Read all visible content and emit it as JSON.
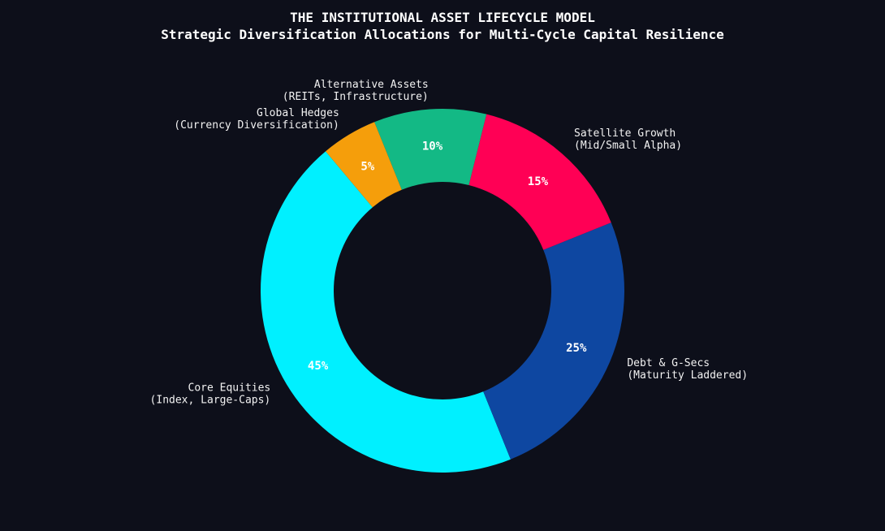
{
  "chart_data": {
    "type": "pie",
    "donut": true,
    "title": "THE INSTITUTIONAL ASSET LIFECYCLE MODEL",
    "subtitle": "Strategic Diversification Allocations for Multi-Cycle Capital Resilience",
    "start_angle_deg": 130,
    "direction": "counterclockwise",
    "slices": [
      {
        "label_line1": "Core Equities",
        "label_line2": "(Index, Large-Caps)",
        "value": 45,
        "pct_label": "45%",
        "color": "#00f0ff"
      },
      {
        "label_line1": "Debt & G-Secs",
        "label_line2": "(Maturity Laddered)",
        "value": 25,
        "pct_label": "25%",
        "color": "#0e47a1"
      },
      {
        "label_line1": "Satellite Growth",
        "label_line2": "(Mid/Small Alpha)",
        "value": 15,
        "pct_label": "15%",
        "color": "#ff0055"
      },
      {
        "label_line1": "Alternative Assets",
        "label_line2": "(REITs, Infrastructure)",
        "value": 10,
        "pct_label": "10%",
        "color": "#13b985"
      },
      {
        "label_line1": "Global Hedges",
        "label_line2": "(Currency Diversification)",
        "value": 5,
        "pct_label": "5%",
        "color": "#f59e0b"
      }
    ]
  },
  "colors": {
    "background": "#0d0f1a",
    "text": "#ffffff"
  }
}
